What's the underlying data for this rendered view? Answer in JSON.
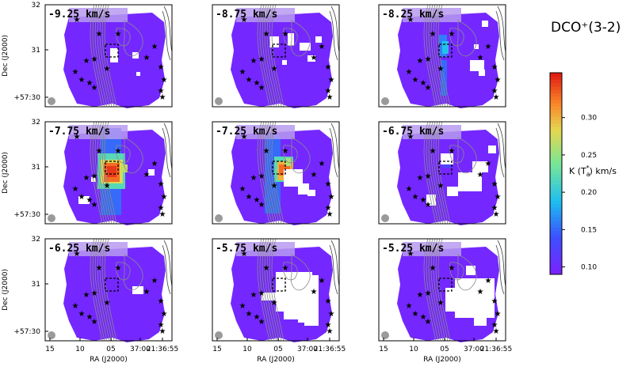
{
  "chart_data": {
    "type": "heatmap",
    "title": "DCO⁺(3-2)",
    "colorbar": {
      "label": "K (T",
      "label_sub": "a",
      "label_sup": "*",
      "label_end": ") km/s",
      "range": [
        0.09,
        0.36
      ],
      "ticks": [
        "0.10",
        "0.15",
        "0.20",
        "0.25",
        "0.30"
      ],
      "tick_values": [
        0.1,
        0.15,
        0.2,
        0.25,
        0.3
      ],
      "colormap": "rainbow (violet → blue → cyan → green → yellow → red)"
    },
    "x_axis": {
      "label": "RA (J2000)",
      "tick_labels": [
        "15",
        "10",
        "05",
        "37:00",
        "21:36:55"
      ]
    },
    "y_axis": {
      "label": "Dec (J2000)",
      "tick_labels": [
        "32",
        "31",
        "+57:30"
      ]
    },
    "panels": [
      {
        "velocity": "-9.25 km/s",
        "peak": 0.1
      },
      {
        "velocity": "-8.75 km/s",
        "peak": 0.1
      },
      {
        "velocity": "-8.25 km/s",
        "peak": 0.19
      },
      {
        "velocity": "-7.75 km/s",
        "peak": 0.35
      },
      {
        "velocity": "-7.25 km/s",
        "peak": 0.33
      },
      {
        "velocity": "-6.75 km/s",
        "peak": 0.12
      },
      {
        "velocity": "-6.25 km/s",
        "peak": 0.1
      },
      {
        "velocity": "-5.75 km/s",
        "peak": 0.1
      },
      {
        "velocity": "-5.25 km/s",
        "peak": 0.1
      }
    ],
    "grid": false,
    "legend": "colorbar at right"
  }
}
